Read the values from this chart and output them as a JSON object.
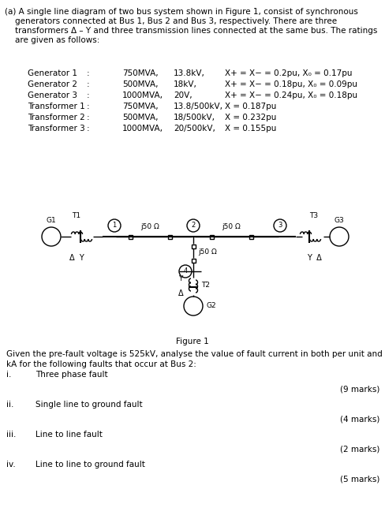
{
  "bg_color": "#ffffff",
  "text_color": "#000000",
  "title_lines": [
    "(a) A single line diagram of two bus system shown in Figure 1, consist of synchronous",
    "    generators connected at Bus 1, Bus 2 and Bus 3, respectively. There are three",
    "    transformers Δ – Y and three transmission lines connected at the same bus. The ratings",
    "    are given as follows:"
  ],
  "table": [
    [
      "Generator 1",
      ":",
      "750MVA,",
      "13.8kV,",
      "X+ = X− = 0.2pu, X₀ = 0.17pu"
    ],
    [
      "Generator 2",
      ":",
      "500MVA,",
      "18kV,",
      "X+ = X− = 0.18pu, X₀ = 0.09pu"
    ],
    [
      "Generator 3",
      ":",
      "1000MVA,",
      "20V,",
      "X+ = X− = 0.24pu, X₀ = 0.18pu"
    ],
    [
      "Transformer 1",
      ":",
      "750MVA,",
      "13.8/500kV,",
      "X = 0.187pu"
    ],
    [
      "Transformer 2",
      ":",
      "500MVA,",
      "18/500kV,",
      "X = 0.232pu"
    ],
    [
      "Transformer 3",
      ":",
      "1000MVA,",
      "20/500kV,",
      "X = 0.155pu"
    ]
  ],
  "items": [
    [
      "i.",
      "Three phase fault",
      "(9 marks)"
    ],
    [
      "ii.",
      "Single line to ground fault",
      "(4 marks)"
    ],
    [
      "iii.",
      "Line to line fault",
      "(2 marks)"
    ],
    [
      "iv.",
      "Line to line to ground fault",
      "(5 marks)"
    ]
  ],
  "bottom_line1": "Given the pre-fault voltage is 525kV, analyse the value of fault current in both per unit and",
  "bottom_line2": "kA for the following faults that occur at Bus 2:",
  "figure_label": "Figure 1"
}
